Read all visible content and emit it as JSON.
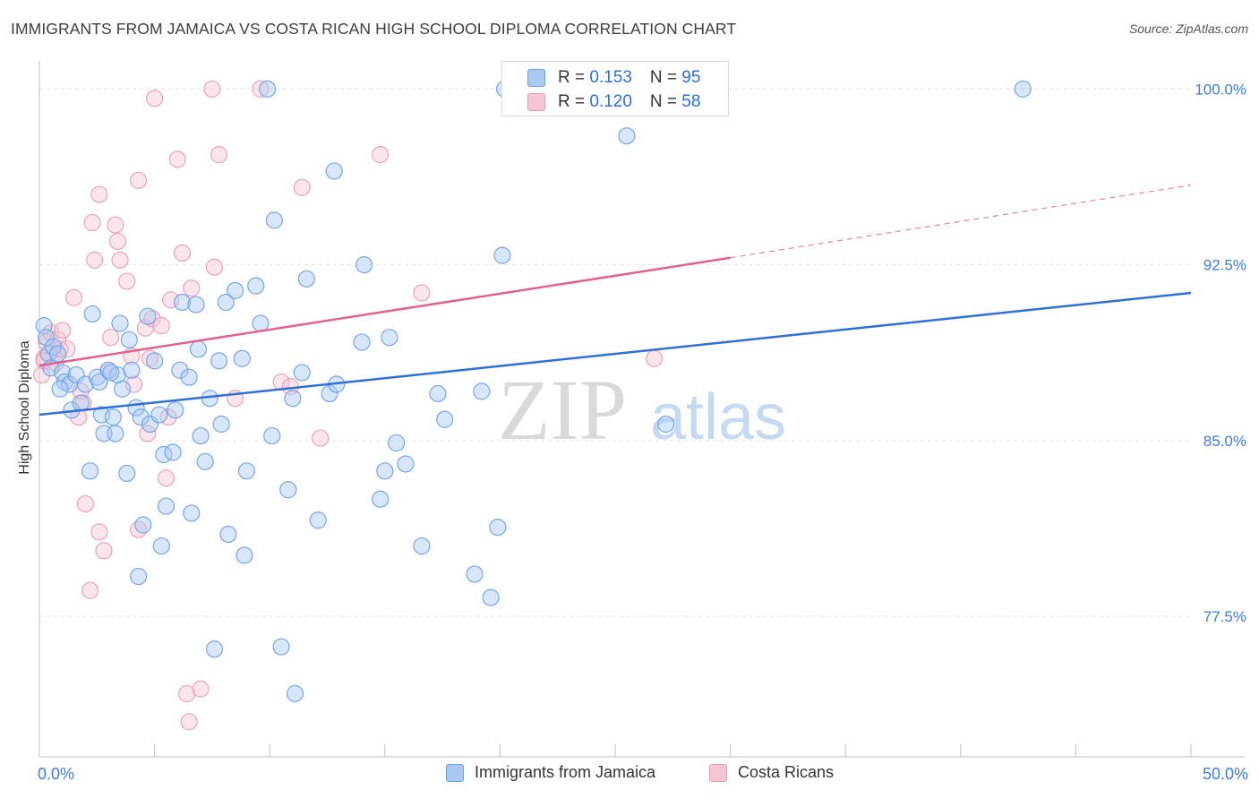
{
  "chart_data": {
    "type": "scatter",
    "title": "IMMIGRANTS FROM JAMAICA VS COSTA RICAN HIGH SCHOOL DIPLOMA CORRELATION CHART",
    "source": "Source: ZipAtlas.com",
    "watermark": {
      "zip": "ZIP",
      "atlas": "atlas"
    },
    "ylabel": "High School Diploma",
    "xlim": [
      0,
      50
    ],
    "ylim": [
      71.5,
      101.2
    ],
    "x_tick_labels": [
      "0.0%",
      "50.0%"
    ],
    "y_ticks": [
      {
        "value": 100.0,
        "label": "100.0%"
      },
      {
        "value": 92.5,
        "label": "92.5%"
      },
      {
        "value": 85.0,
        "label": "85.0%"
      },
      {
        "value": 77.5,
        "label": "77.5%"
      }
    ],
    "grid": true,
    "series": [
      {
        "name": "Immigrants from Jamaica",
        "color": "#6a9ee8",
        "fill": "#a9c8f2",
        "line_color": "#2f6fd6",
        "r": "0.153",
        "n": "95",
        "trend": {
          "x0": 0,
          "y0": 86.1,
          "x1": 50,
          "y1": 91.3
        },
        "points": [
          [
            0.2,
            89.9
          ],
          [
            0.3,
            89.4
          ],
          [
            0.4,
            88.7
          ],
          [
            0.5,
            88.1
          ],
          [
            0.6,
            89.0
          ],
          [
            0.8,
            88.7
          ],
          [
            1.0,
            87.9
          ],
          [
            1.1,
            87.5
          ],
          [
            1.3,
            87.4
          ],
          [
            1.4,
            86.3
          ],
          [
            1.6,
            87.8
          ],
          [
            1.8,
            86.6
          ],
          [
            2.0,
            87.4
          ],
          [
            2.2,
            83.7
          ],
          [
            2.3,
            90.4
          ],
          [
            2.5,
            87.7
          ],
          [
            2.6,
            87.5
          ],
          [
            2.7,
            86.1
          ],
          [
            2.8,
            85.3
          ],
          [
            3.0,
            88.0
          ],
          [
            3.2,
            86.0
          ],
          [
            3.3,
            85.3
          ],
          [
            3.4,
            87.8
          ],
          [
            3.5,
            90.0
          ],
          [
            3.6,
            87.2
          ],
          [
            3.8,
            83.6
          ],
          [
            3.9,
            89.3
          ],
          [
            4.0,
            88.0
          ],
          [
            4.2,
            86.4
          ],
          [
            4.3,
            79.2
          ],
          [
            4.4,
            86.0
          ],
          [
            4.5,
            81.4
          ],
          [
            4.7,
            90.3
          ],
          [
            4.8,
            85.7
          ],
          [
            5.0,
            88.4
          ],
          [
            5.2,
            86.1
          ],
          [
            5.3,
            80.5
          ],
          [
            5.4,
            84.4
          ],
          [
            5.5,
            82.2
          ],
          [
            5.8,
            84.5
          ],
          [
            5.9,
            86.3
          ],
          [
            6.1,
            88.0
          ],
          [
            6.2,
            90.9
          ],
          [
            6.5,
            87.7
          ],
          [
            6.6,
            81.9
          ],
          [
            6.8,
            90.8
          ],
          [
            6.9,
            88.9
          ],
          [
            7.0,
            85.2
          ],
          [
            7.2,
            84.1
          ],
          [
            7.4,
            86.8
          ],
          [
            7.6,
            76.1
          ],
          [
            7.8,
            88.4
          ],
          [
            7.9,
            85.7
          ],
          [
            8.1,
            90.9
          ],
          [
            8.2,
            81.0
          ],
          [
            8.5,
            91.4
          ],
          [
            8.8,
            88.5
          ],
          [
            8.9,
            80.1
          ],
          [
            9.0,
            83.7
          ],
          [
            9.4,
            91.6
          ],
          [
            9.6,
            90.0
          ],
          [
            9.9,
            100.0
          ],
          [
            10.1,
            85.2
          ],
          [
            10.2,
            94.4
          ],
          [
            10.5,
            76.2
          ],
          [
            10.8,
            82.9
          ],
          [
            11.0,
            86.8
          ],
          [
            11.1,
            74.2
          ],
          [
            11.4,
            87.9
          ],
          [
            11.6,
            91.9
          ],
          [
            12.1,
            81.6
          ],
          [
            12.6,
            87.0
          ],
          [
            12.8,
            96.5
          ],
          [
            12.9,
            87.4
          ],
          [
            14.0,
            89.2
          ],
          [
            14.1,
            92.5
          ],
          [
            14.8,
            82.5
          ],
          [
            15.0,
            83.7
          ],
          [
            15.2,
            89.4
          ],
          [
            15.5,
            84.9
          ],
          [
            15.9,
            84.0
          ],
          [
            16.6,
            80.5
          ],
          [
            17.3,
            87.0
          ],
          [
            17.6,
            85.9
          ],
          [
            18.9,
            79.3
          ],
          [
            19.2,
            87.1
          ],
          [
            19.6,
            78.3
          ],
          [
            19.9,
            81.3
          ],
          [
            20.1,
            92.9
          ],
          [
            20.2,
            100.0
          ],
          [
            25.5,
            98.0
          ],
          [
            27.2,
            85.7
          ],
          [
            42.7,
            100.0
          ],
          [
            0.9,
            87.2
          ],
          [
            3.1,
            87.9
          ]
        ]
      },
      {
        "name": "Costa Ricans",
        "color": "#ec9ab4",
        "fill": "#f6c5d4",
        "line_color": "#e0618f",
        "r": "0.120",
        "n": "58",
        "trend": {
          "x0": 0,
          "y0": 88.2,
          "x1": 30,
          "y1": 92.8
        },
        "trend_dash": {
          "x0": 30,
          "y0": 92.8,
          "x1": 50,
          "y1": 95.9
        },
        "points": [
          [
            0.1,
            87.8
          ],
          [
            0.2,
            88.5
          ],
          [
            0.3,
            89.2
          ],
          [
            0.5,
            89.6
          ],
          [
            0.7,
            88.3
          ],
          [
            0.8,
            89.3
          ],
          [
            0.9,
            88.9
          ],
          [
            1.0,
            89.7
          ],
          [
            1.2,
            88.9
          ],
          [
            1.5,
            91.1
          ],
          [
            1.7,
            86.0
          ],
          [
            1.8,
            87.1
          ],
          [
            1.9,
            86.6
          ],
          [
            2.0,
            82.3
          ],
          [
            2.2,
            78.6
          ],
          [
            2.3,
            94.3
          ],
          [
            2.4,
            92.7
          ],
          [
            2.6,
            81.1
          ],
          [
            2.6,
            95.5
          ],
          [
            2.8,
            80.3
          ],
          [
            3.0,
            88.0
          ],
          [
            3.1,
            89.4
          ],
          [
            3.3,
            94.2
          ],
          [
            3.4,
            93.5
          ],
          [
            3.5,
            92.7
          ],
          [
            3.8,
            91.8
          ],
          [
            4.0,
            88.6
          ],
          [
            4.1,
            87.4
          ],
          [
            4.3,
            81.2
          ],
          [
            4.3,
            96.1
          ],
          [
            4.6,
            89.8
          ],
          [
            4.7,
            85.3
          ],
          [
            4.8,
            88.5
          ],
          [
            4.9,
            90.2
          ],
          [
            5.0,
            99.6
          ],
          [
            5.3,
            89.9
          ],
          [
            5.5,
            83.4
          ],
          [
            5.6,
            86.0
          ],
          [
            5.7,
            91.0
          ],
          [
            6.0,
            97.0
          ],
          [
            6.2,
            93.0
          ],
          [
            6.4,
            74.2
          ],
          [
            6.5,
            73.0
          ],
          [
            6.6,
            91.5
          ],
          [
            7.0,
            74.4
          ],
          [
            7.5,
            100.0
          ],
          [
            7.6,
            92.4
          ],
          [
            7.8,
            97.2
          ],
          [
            8.5,
            86.8
          ],
          [
            9.6,
            100.0
          ],
          [
            10.5,
            87.5
          ],
          [
            10.9,
            87.3
          ],
          [
            11.4,
            95.8
          ],
          [
            12.2,
            85.1
          ],
          [
            14.8,
            97.2
          ],
          [
            16.6,
            91.3
          ],
          [
            26.7,
            88.5
          ],
          [
            0.2,
            88.4
          ]
        ]
      }
    ]
  }
}
